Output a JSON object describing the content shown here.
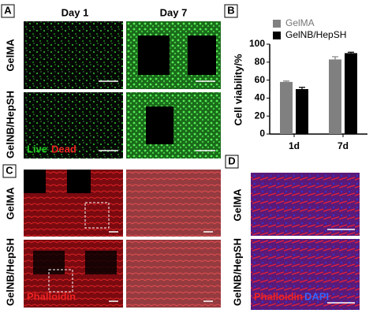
{
  "panel_a": {
    "label": "A",
    "columns": [
      "Day 1",
      "Day 7"
    ],
    "rows": [
      "GelMA",
      "GelNB/HepSH"
    ],
    "stain": [
      "Live",
      "Dead"
    ]
  },
  "panel_b": {
    "label": "B"
  },
  "panel_c": {
    "label": "C",
    "rows": [
      "GelMA",
      "GelNB/HepSH"
    ],
    "stain": "Phalloidin"
  },
  "panel_d": {
    "label": "D",
    "rows": [
      "GelMA",
      "GelNB/HepSH"
    ],
    "stain": [
      "Phalloidin",
      "DAPI"
    ]
  },
  "chart_data": {
    "type": "bar",
    "ylabel": "Cell viability/%",
    "categories": [
      "1d",
      "7d"
    ],
    "series": [
      {
        "name": "GelMA",
        "color": "#808080",
        "values": [
          58,
          83
        ],
        "errors": [
          1,
          3
        ]
      },
      {
        "name": "GelNB/HepSH",
        "color": "#000000",
        "values": [
          50,
          90
        ],
        "errors": [
          2,
          1
        ]
      }
    ],
    "ylim": [
      0,
      100
    ],
    "yticks": [
      0,
      20,
      40,
      60,
      80,
      100
    ]
  }
}
